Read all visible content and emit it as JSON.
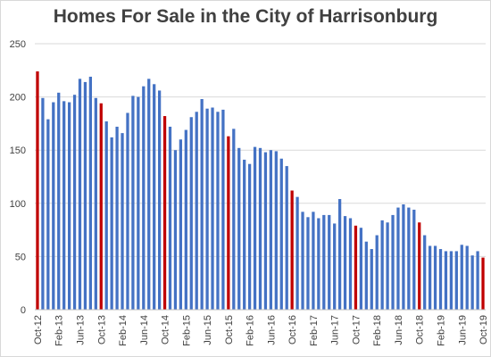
{
  "chart_data": {
    "type": "bar",
    "title": "Homes For Sale in the City of Harrisonburg",
    "xlabel": "",
    "ylabel": "",
    "ylim": [
      0,
      250
    ],
    "yticks": [
      0,
      50,
      100,
      150,
      200,
      250
    ],
    "grid": true,
    "legend": "none",
    "colors": {
      "default": "#4472c4",
      "highlight": "#c00000"
    },
    "tick_labels": [
      "Oct-12",
      "Feb-13",
      "Jun-13",
      "Oct-13",
      "Feb-14",
      "Jun-14",
      "Oct-14",
      "Feb-15",
      "Jun-15",
      "Oct-15",
      "Feb-16",
      "Jun-16",
      "Oct-16",
      "Feb-17",
      "Jun-17",
      "Oct-17",
      "Feb-18",
      "Jun-18",
      "Oct-18",
      "Feb-19",
      "Jun-19",
      "Oct-19"
    ],
    "categories": [
      "Oct-12",
      "Nov-12",
      "Dec-12",
      "Jan-13",
      "Feb-13",
      "Mar-13",
      "Apr-13",
      "May-13",
      "Jun-13",
      "Jul-13",
      "Aug-13",
      "Sep-13",
      "Oct-13",
      "Nov-13",
      "Dec-13",
      "Jan-14",
      "Feb-14",
      "Mar-14",
      "Apr-14",
      "May-14",
      "Jun-14",
      "Jul-14",
      "Aug-14",
      "Sep-14",
      "Oct-14",
      "Nov-14",
      "Dec-14",
      "Jan-15",
      "Feb-15",
      "Mar-15",
      "Apr-15",
      "May-15",
      "Jun-15",
      "Jul-15",
      "Aug-15",
      "Sep-15",
      "Oct-15",
      "Nov-15",
      "Dec-15",
      "Jan-16",
      "Feb-16",
      "Mar-16",
      "Apr-16",
      "May-16",
      "Jun-16",
      "Jul-16",
      "Aug-16",
      "Sep-16",
      "Oct-16",
      "Nov-16",
      "Dec-16",
      "Jan-17",
      "Feb-17",
      "Mar-17",
      "Apr-17",
      "May-17",
      "Jun-17",
      "Jul-17",
      "Aug-17",
      "Sep-17",
      "Oct-17",
      "Nov-17",
      "Dec-17",
      "Jan-18",
      "Feb-18",
      "Mar-18",
      "Apr-18",
      "May-18",
      "Jun-18",
      "Jul-18",
      "Aug-18",
      "Sep-18",
      "Oct-18",
      "Nov-18",
      "Dec-18",
      "Jan-19",
      "Feb-19",
      "Mar-19",
      "Apr-19",
      "May-19",
      "Jun-19",
      "Jul-19",
      "Aug-19",
      "Sep-19",
      "Oct-19"
    ],
    "values": [
      224,
      199,
      179,
      195,
      204,
      196,
      195,
      202,
      217,
      214,
      219,
      199,
      194,
      177,
      162,
      172,
      166,
      185,
      201,
      200,
      210,
      217,
      212,
      206,
      182,
      172,
      150,
      160,
      169,
      181,
      186,
      198,
      189,
      190,
      186,
      188,
      163,
      170,
      152,
      141,
      137,
      153,
      152,
      148,
      150,
      149,
      142,
      135,
      112,
      106,
      92,
      87,
      92,
      86,
      89,
      89,
      81,
      104,
      88,
      86,
      79,
      77,
      64,
      57,
      70,
      84,
      82,
      89,
      96,
      99,
      96,
      94,
      82,
      70,
      60,
      60,
      57,
      55,
      55,
      55,
      61,
      60,
      51,
      55,
      49
    ],
    "highlighted_categories": [
      "Oct-12",
      "Oct-13",
      "Oct-14",
      "Oct-15",
      "Oct-16",
      "Oct-17",
      "Oct-18",
      "Oct-19"
    ]
  }
}
